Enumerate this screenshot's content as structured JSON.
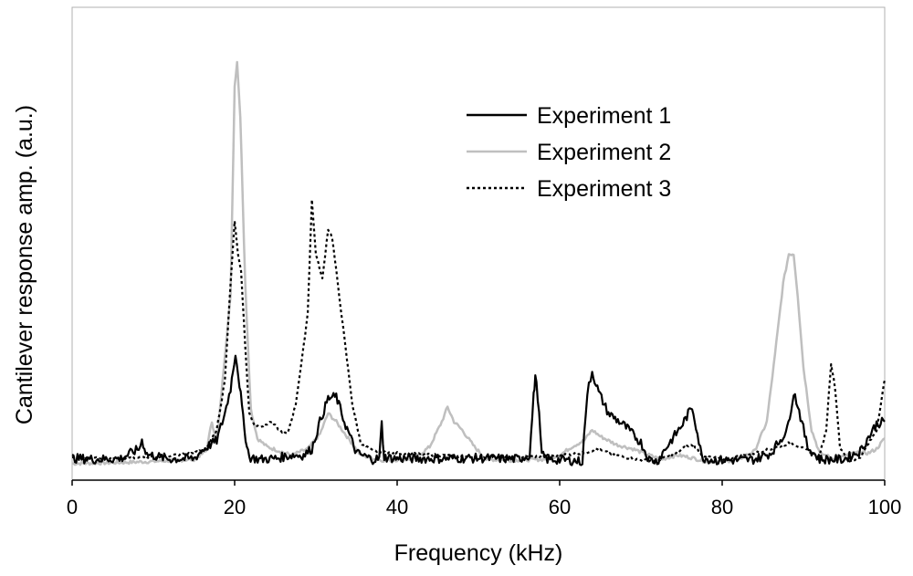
{
  "chart_data": {
    "type": "line",
    "xlabel": "Frequency (kHz)",
    "ylabel": "Cantilever response amp. (a.u.)",
    "xlim": [
      0,
      100
    ],
    "ylim": [
      0,
      1
    ],
    "x_ticks": [
      "0",
      "20",
      "40",
      "60",
      "80",
      "100"
    ],
    "y_ticks_shown": false,
    "grid": false,
    "legend_position": "top-center",
    "series": [
      {
        "name": "Experiment 1",
        "color": "#000000",
        "style": "solid",
        "points": [
          [
            0,
            0.033
          ],
          [
            3,
            0.03
          ],
          [
            6,
            0.032
          ],
          [
            8.2,
            0.055
          ],
          [
            8.6,
            0.075
          ],
          [
            9.2,
            0.042
          ],
          [
            12,
            0.031
          ],
          [
            15,
            0.032
          ],
          [
            16.2,
            0.055
          ],
          [
            17.8,
            0.075
          ],
          [
            18.8,
            0.14
          ],
          [
            19.5,
            0.2
          ],
          [
            20.1,
            0.285
          ],
          [
            20.6,
            0.21
          ],
          [
            21.2,
            0.1
          ],
          [
            21.8,
            0.035
          ],
          [
            23,
            0.03
          ],
          [
            25,
            0.032
          ],
          [
            27,
            0.04
          ],
          [
            28.5,
            0.04
          ],
          [
            29.5,
            0.055
          ],
          [
            30.5,
            0.12
          ],
          [
            31.5,
            0.175
          ],
          [
            32.5,
            0.18
          ],
          [
            33.5,
            0.12
          ],
          [
            35,
            0.045
          ],
          [
            37,
            0.03
          ],
          [
            37.8,
            0.032
          ],
          [
            38.1,
            0.115
          ],
          [
            38.4,
            0.035
          ],
          [
            40,
            0.032
          ],
          [
            45,
            0.032
          ],
          [
            50,
            0.033
          ],
          [
            55,
            0.031
          ],
          [
            56.3,
            0.04
          ],
          [
            56.8,
            0.18
          ],
          [
            57.0,
            0.23
          ],
          [
            57.3,
            0.18
          ],
          [
            57.8,
            0.04
          ],
          [
            58.5,
            0.03
          ],
          [
            61,
            0.028
          ],
          [
            62.8,
            0.025
          ],
          [
            63.2,
            0.14
          ],
          [
            63.6,
            0.21
          ],
          [
            64,
            0.24
          ],
          [
            64.8,
            0.19
          ],
          [
            66,
            0.14
          ],
          [
            68,
            0.11
          ],
          [
            70,
            0.07
          ],
          [
            71,
            0.03
          ],
          [
            72,
            0.025
          ],
          [
            73,
            0.055
          ],
          [
            75,
            0.11
          ],
          [
            76.3,
            0.155
          ],
          [
            76.6,
            0.13
          ],
          [
            77.5,
            0.035
          ],
          [
            79,
            0.028
          ],
          [
            82,
            0.028
          ],
          [
            84,
            0.03
          ],
          [
            86,
            0.045
          ],
          [
            88,
            0.1
          ],
          [
            88.8,
            0.19
          ],
          [
            89.3,
            0.16
          ],
          [
            90.5,
            0.06
          ],
          [
            92,
            0.03
          ],
          [
            95,
            0.03
          ],
          [
            97,
            0.05
          ],
          [
            99,
            0.115
          ],
          [
            100,
            0.12
          ]
        ]
      },
      {
        "name": "Experiment 2",
        "color": "#bfbfbf",
        "style": "solid",
        "points": [
          [
            0,
            0.02
          ],
          [
            5,
            0.022
          ],
          [
            10,
            0.025
          ],
          [
            15,
            0.03
          ],
          [
            16.5,
            0.05
          ],
          [
            17.2,
            0.12
          ],
          [
            17.8,
            0.07
          ],
          [
            18.2,
            0.15
          ],
          [
            18.8,
            0.28
          ],
          [
            19.5,
            0.42
          ],
          [
            20.0,
            0.92
          ],
          [
            20.3,
            0.98
          ],
          [
            20.7,
            0.85
          ],
          [
            21.3,
            0.45
          ],
          [
            22,
            0.15
          ],
          [
            22.8,
            0.08
          ],
          [
            24,
            0.06
          ],
          [
            25.5,
            0.05
          ],
          [
            27,
            0.04
          ],
          [
            29,
            0.055
          ],
          [
            30.5,
            0.09
          ],
          [
            31.5,
            0.14
          ],
          [
            32.5,
            0.12
          ],
          [
            34,
            0.08
          ],
          [
            35.5,
            0.04
          ],
          [
            38,
            0.028
          ],
          [
            42,
            0.03
          ],
          [
            44,
            0.06
          ],
          [
            45.5,
            0.12
          ],
          [
            46.2,
            0.155
          ],
          [
            47,
            0.12
          ],
          [
            48,
            0.1
          ],
          [
            49.5,
            0.06
          ],
          [
            51,
            0.03
          ],
          [
            54,
            0.028
          ],
          [
            58,
            0.03
          ],
          [
            60,
            0.04
          ],
          [
            61.5,
            0.06
          ],
          [
            63,
            0.075
          ],
          [
            64,
            0.1
          ],
          [
            65,
            0.085
          ],
          [
            67,
            0.065
          ],
          [
            69,
            0.055
          ],
          [
            71,
            0.04
          ],
          [
            72.5,
            0.03
          ],
          [
            74.5,
            0.04
          ],
          [
            76,
            0.035
          ],
          [
            78,
            0.025
          ],
          [
            80,
            0.025
          ],
          [
            82,
            0.03
          ],
          [
            84,
            0.05
          ],
          [
            85.5,
            0.12
          ],
          [
            86.5,
            0.28
          ],
          [
            87.5,
            0.45
          ],
          [
            88.2,
            0.52
          ],
          [
            88.8,
            0.52
          ],
          [
            89.3,
            0.42
          ],
          [
            90,
            0.25
          ],
          [
            91,
            0.1
          ],
          [
            92,
            0.045
          ],
          [
            94,
            0.03
          ],
          [
            96,
            0.045
          ],
          [
            98,
            0.045
          ],
          [
            99,
            0.055
          ],
          [
            100,
            0.08
          ]
        ]
      },
      {
        "name": "Experiment 3",
        "color": "#000000",
        "style": "dotted",
        "points": [
          [
            0,
            0.035
          ],
          [
            5,
            0.033
          ],
          [
            10,
            0.035
          ],
          [
            15,
            0.045
          ],
          [
            16.5,
            0.055
          ],
          [
            17.8,
            0.1
          ],
          [
            18.8,
            0.22
          ],
          [
            19.5,
            0.45
          ],
          [
            20.0,
            0.6
          ],
          [
            20.4,
            0.52
          ],
          [
            20.8,
            0.48
          ],
          [
            21.3,
            0.3
          ],
          [
            21.8,
            0.14
          ],
          [
            22.5,
            0.11
          ],
          [
            23.5,
            0.11
          ],
          [
            24.5,
            0.12
          ],
          [
            25.5,
            0.1
          ],
          [
            26.5,
            0.09
          ],
          [
            27.5,
            0.16
          ],
          [
            28.5,
            0.3
          ],
          [
            29.0,
            0.38
          ],
          [
            29.5,
            0.65
          ],
          [
            30.0,
            0.52
          ],
          [
            30.8,
            0.46
          ],
          [
            31.5,
            0.58
          ],
          [
            32.0,
            0.56
          ],
          [
            32.5,
            0.48
          ],
          [
            33.5,
            0.32
          ],
          [
            34.5,
            0.16
          ],
          [
            35.5,
            0.07
          ],
          [
            37,
            0.05
          ],
          [
            40,
            0.045
          ],
          [
            45,
            0.04
          ],
          [
            50,
            0.035
          ],
          [
            55,
            0.035
          ],
          [
            60,
            0.04
          ],
          [
            63,
            0.045
          ],
          [
            64.5,
            0.055
          ],
          [
            66,
            0.045
          ],
          [
            68,
            0.035
          ],
          [
            70,
            0.028
          ],
          [
            72,
            0.028
          ],
          [
            74,
            0.04
          ],
          [
            75.5,
            0.06
          ],
          [
            76.5,
            0.065
          ],
          [
            77.5,
            0.04
          ],
          [
            80,
            0.03
          ],
          [
            83,
            0.04
          ],
          [
            86,
            0.055
          ],
          [
            88.5,
            0.07
          ],
          [
            90,
            0.055
          ],
          [
            92,
            0.04
          ],
          [
            92.8,
            0.1
          ],
          [
            93.4,
            0.26
          ],
          [
            93.9,
            0.2
          ],
          [
            94.5,
            0.06
          ],
          [
            95.5,
            0.025
          ],
          [
            97,
            0.035
          ],
          [
            99,
            0.1
          ],
          [
            100,
            0.22
          ]
        ]
      }
    ]
  }
}
